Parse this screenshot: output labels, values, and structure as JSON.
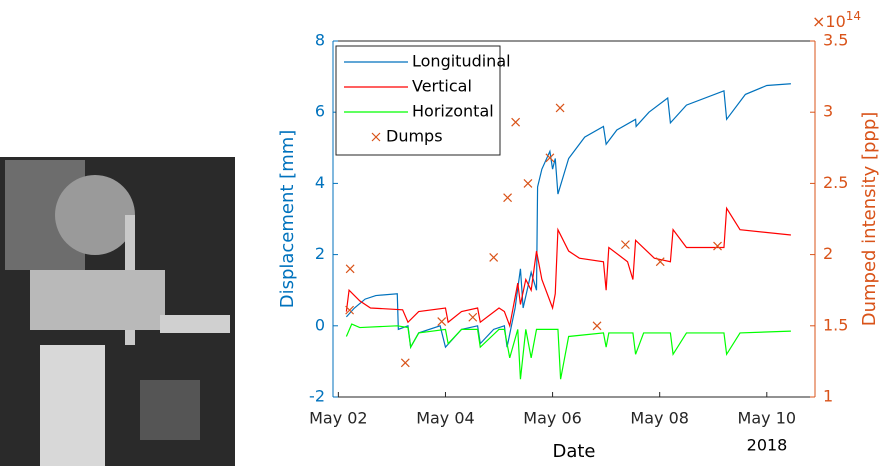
{
  "chart_data": {
    "type": "line",
    "x_label": "Date",
    "x_year_label": "2018",
    "y_label": "Displacement [mm]",
    "y2_label": "Dumped intensity [ppp]",
    "y2_scale_base": "×10",
    "y2_scale_exponent": "14",
    "xlim": [
      1.9,
      10.9
    ],
    "xticks": [
      {
        "value": 2,
        "label": "May 02"
      },
      {
        "value": 4,
        "label": "May 04"
      },
      {
        "value": 6,
        "label": "May 06"
      },
      {
        "value": 8,
        "label": "May 08"
      },
      {
        "value": 10,
        "label": "May 10"
      }
    ],
    "ylim": [
      -2,
      8
    ],
    "yticks": [
      -2,
      0,
      2,
      4,
      6,
      8
    ],
    "y_color": "#0072BD",
    "y2lim": [
      1,
      3.5
    ],
    "y2ticks": [
      1,
      1.5,
      2,
      2.5,
      3,
      3.5
    ],
    "y2_color": "#D95319",
    "legend": "upper left",
    "series": [
      {
        "name": "Longitudinal",
        "color": "#0072BD",
        "x": [
          2.15,
          2.3,
          2.5,
          2.7,
          3.1,
          3.12,
          3.3,
          3.35,
          3.5,
          3.9,
          4.0,
          4.3,
          4.6,
          4.65,
          4.9,
          5.1,
          5.15,
          5.3,
          5.4,
          5.45,
          5.6,
          5.7,
          5.72,
          5.8,
          5.95,
          6.0,
          6.05,
          6.1,
          6.3,
          6.6,
          6.95,
          7.0,
          7.2,
          7.55,
          7.56,
          7.8,
          8.15,
          8.2,
          8.5,
          9.2,
          9.25,
          9.6,
          10.0,
          10.45
        ],
        "values": [
          0.25,
          0.5,
          0.75,
          0.85,
          0.9,
          -0.1,
          0.0,
          -0.6,
          -0.2,
          0.0,
          -0.6,
          -0.1,
          0.0,
          -0.5,
          -0.1,
          0.0,
          -0.6,
          0.5,
          1.6,
          0.5,
          1.5,
          1.0,
          3.9,
          4.4,
          4.9,
          4.4,
          4.7,
          3.7,
          4.7,
          5.3,
          5.6,
          5.1,
          5.5,
          5.8,
          5.6,
          6.0,
          6.4,
          5.7,
          6.2,
          6.6,
          5.8,
          6.5,
          6.75,
          6.8
        ]
      },
      {
        "name": "Vertical",
        "color": "#FF0000",
        "x": [
          2.15,
          2.2,
          2.4,
          2.6,
          3.2,
          3.3,
          3.5,
          4.0,
          4.05,
          4.3,
          4.6,
          4.65,
          5.0,
          5.1,
          5.2,
          5.35,
          5.4,
          5.5,
          5.6,
          5.7,
          5.8,
          6.0,
          6.05,
          6.1,
          6.3,
          6.5,
          6.95,
          7.0,
          7.05,
          7.4,
          7.5,
          7.55,
          7.9,
          8.2,
          8.25,
          8.5,
          9.2,
          9.25,
          9.5,
          10.45
        ],
        "values": [
          0.4,
          1.0,
          0.7,
          0.5,
          0.45,
          0.1,
          0.4,
          0.5,
          0.1,
          0.4,
          0.5,
          0.1,
          0.5,
          0.4,
          0.0,
          1.2,
          0.6,
          1.3,
          1.0,
          2.1,
          1.3,
          0.5,
          0.9,
          2.7,
          2.1,
          1.9,
          1.8,
          1.0,
          2.2,
          1.8,
          1.3,
          2.4,
          1.9,
          1.8,
          2.7,
          2.2,
          2.2,
          3.3,
          2.7,
          2.55
        ]
      },
      {
        "name": "Horizontal",
        "color": "#00FF00",
        "x": [
          2.15,
          2.25,
          2.4,
          3.1,
          3.3,
          3.35,
          3.5,
          4.0,
          4.05,
          4.3,
          4.6,
          4.65,
          5.0,
          5.1,
          5.2,
          5.35,
          5.4,
          5.5,
          5.6,
          5.7,
          6.1,
          6.15,
          6.3,
          6.95,
          7.0,
          7.05,
          7.5,
          7.55,
          7.7,
          8.2,
          8.25,
          8.5,
          9.2,
          9.25,
          9.5,
          10.45
        ],
        "values": [
          -0.3,
          0.05,
          -0.05,
          0.0,
          -0.05,
          -0.6,
          -0.2,
          -0.1,
          -0.5,
          -0.1,
          -0.1,
          -0.6,
          -0.1,
          -0.1,
          -0.9,
          -0.1,
          -1.5,
          -0.1,
          -0.9,
          -0.1,
          -0.1,
          -1.5,
          -0.3,
          -0.2,
          -0.6,
          -0.2,
          -0.2,
          -0.8,
          -0.2,
          -0.2,
          -0.8,
          -0.2,
          -0.2,
          -0.8,
          -0.2,
          -0.15
        ]
      },
      {
        "name": "Dumps",
        "color": "#D95319",
        "axis": "y2",
        "marker": "x",
        "x": [
          2.22,
          2.21,
          3.25,
          3.93,
          4.51,
          4.9,
          5.16,
          5.31,
          5.54,
          5.95,
          6.14,
          6.83,
          7.36,
          8.01,
          9.08
        ],
        "values": [
          1.9,
          1.61,
          1.24,
          1.53,
          1.56,
          1.98,
          2.4,
          2.93,
          2.5,
          2.68,
          3.03,
          1.5,
          2.07,
          1.95,
          2.06
        ]
      }
    ]
  }
}
